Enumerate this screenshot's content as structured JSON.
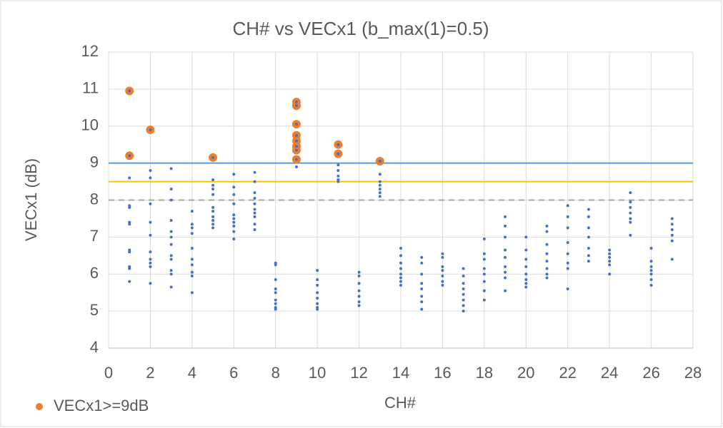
{
  "chart_data": {
    "type": "scatter",
    "title": "CH# vs VECx1 (b_max(1)=0.5)",
    "xlabel": "CH#",
    "ylabel": "VECx1 (dB)",
    "xlim": [
      0,
      28
    ],
    "xticks": [
      0,
      2,
      4,
      6,
      8,
      10,
      12,
      14,
      16,
      18,
      20,
      22,
      24,
      26,
      28
    ],
    "ylim": [
      4,
      12
    ],
    "yticks": [
      4,
      5,
      6,
      7,
      8,
      9,
      10,
      11,
      12
    ],
    "grid": true,
    "legend": "bottom-left",
    "hlines": [
      {
        "value": 9,
        "color": "#5b9bd5"
      },
      {
        "value": 8.5,
        "color": "#ffc000"
      },
      {
        "value": 8,
        "color": "#a5a5a5",
        "dashed": true
      }
    ],
    "series": [
      {
        "name": "VECx1>=9dB",
        "color": "#ed7d31",
        "size": 6,
        "x": [
          1,
          1,
          2,
          5,
          9,
          9,
          9,
          9,
          9,
          9,
          9,
          9,
          11,
          11,
          13
        ],
        "y": [
          10.95,
          9.2,
          9.9,
          9.15,
          10.65,
          10.55,
          10.05,
          9.75,
          9.6,
          9.45,
          9.35,
          9.1,
          9.5,
          9.25,
          9.05
        ]
      },
      {
        "color": "#4472c4",
        "size": 2,
        "x": [
          1,
          1,
          1,
          1,
          1,
          1,
          1,
          1,
          1,
          1,
          2,
          2,
          2,
          2,
          2,
          2,
          2,
          2,
          2,
          2,
          3,
          3,
          3,
          3,
          3,
          3,
          3,
          3,
          3,
          3,
          3,
          3,
          4,
          4,
          4,
          4,
          4,
          4,
          4,
          4,
          4,
          4,
          5,
          5,
          5,
          5,
          5,
          5,
          5,
          5,
          5,
          5,
          6,
          6,
          6,
          6,
          6,
          6,
          6,
          6,
          6,
          6,
          7,
          7,
          7,
          7,
          7,
          7,
          7,
          7,
          7,
          7,
          8,
          8,
          8,
          8,
          8,
          8,
          8,
          8,
          8,
          9,
          10,
          10,
          10,
          10,
          10,
          10,
          10,
          10,
          11,
          11,
          11,
          11,
          11,
          12,
          12,
          12,
          12,
          12,
          12,
          12,
          13,
          13,
          13,
          13,
          13,
          13,
          14,
          14,
          14,
          14,
          14,
          14,
          14,
          14,
          15,
          15,
          15,
          15,
          15,
          15,
          15,
          15,
          16,
          16,
          16,
          16,
          16,
          16,
          16,
          17,
          17,
          17,
          17,
          17,
          17,
          17,
          17,
          18,
          18,
          18,
          18,
          18,
          18,
          18,
          18,
          19,
          19,
          19,
          19,
          19,
          19,
          19,
          19,
          19,
          20,
          20,
          20,
          20,
          20,
          20,
          20,
          20,
          21,
          21,
          21,
          21,
          21,
          21,
          21,
          21,
          22,
          22,
          22,
          22,
          22,
          22,
          22,
          22,
          23,
          23,
          23,
          23,
          23,
          23,
          23,
          24,
          24,
          24,
          24,
          24,
          24,
          25,
          25,
          25,
          25,
          25,
          25,
          25,
          26,
          26,
          26,
          26,
          26,
          26,
          26,
          27,
          27,
          27,
          27,
          27,
          27,
          1,
          1,
          2,
          5,
          9,
          9,
          9,
          9,
          9,
          9,
          9,
          9,
          11,
          11,
          13
        ],
        "y": [
          8.6,
          7.85,
          7.8,
          7.4,
          7.35,
          6.65,
          6.6,
          6.2,
          6.15,
          5.8,
          8.8,
          8.6,
          7.9,
          7.4,
          7.05,
          6.6,
          6.4,
          6.3,
          6.2,
          5.75,
          8.85,
          8.3,
          8.0,
          7.45,
          7.15,
          7.0,
          6.8,
          6.5,
          6.4,
          6.1,
          6.0,
          5.65,
          7.7,
          7.35,
          7.25,
          7.1,
          6.7,
          6.4,
          6.25,
          6.05,
          5.95,
          5.5,
          8.55,
          8.4,
          8.3,
          8.15,
          7.8,
          7.7,
          7.55,
          7.45,
          7.35,
          7.25,
          8.7,
          8.35,
          8.15,
          7.9,
          7.6,
          7.5,
          7.4,
          7.3,
          7.15,
          6.95,
          8.75,
          8.5,
          8.2,
          8.05,
          7.9,
          7.75,
          7.65,
          7.55,
          7.35,
          7.2,
          6.3,
          6.25,
          5.85,
          5.6,
          5.5,
          5.3,
          5.2,
          5.1,
          5.05,
          8.9,
          6.1,
          5.85,
          5.7,
          5.5,
          5.35,
          5.2,
          5.1,
          5.05,
          8.95,
          8.8,
          8.65,
          8.55,
          8.5,
          6.05,
          5.95,
          5.75,
          5.55,
          5.4,
          5.25,
          5.15,
          8.7,
          8.5,
          8.4,
          8.3,
          8.2,
          8.1,
          6.7,
          6.5,
          6.3,
          6.15,
          6.0,
          5.9,
          5.8,
          5.7,
          6.45,
          6.3,
          6.0,
          5.75,
          5.6,
          5.4,
          5.25,
          5.05,
          6.55,
          6.45,
          6.2,
          6.1,
          5.95,
          5.8,
          5.7,
          6.15,
          5.95,
          5.75,
          5.6,
          5.45,
          5.3,
          5.15,
          5.0,
          6.95,
          6.55,
          6.4,
          6.15,
          6.0,
          5.8,
          5.55,
          5.3,
          7.55,
          7.3,
          7.0,
          6.65,
          6.45,
          6.2,
          6.05,
          5.9,
          5.55,
          7.0,
          6.65,
          6.4,
          6.2,
          6.0,
          5.85,
          5.75,
          5.65,
          7.3,
          7.15,
          6.8,
          6.55,
          6.35,
          6.15,
          6.0,
          5.9,
          7.85,
          7.55,
          7.25,
          6.85,
          6.55,
          6.3,
          6.15,
          5.6,
          7.75,
          7.55,
          7.25,
          7.0,
          6.7,
          6.5,
          6.35,
          6.65,
          6.55,
          6.45,
          6.35,
          6.25,
          6.0,
          8.2,
          7.95,
          7.8,
          7.65,
          7.5,
          7.4,
          7.05,
          6.7,
          6.35,
          6.2,
          6.1,
          6.0,
          5.85,
          5.7,
          7.5,
          7.35,
          7.2,
          7.05,
          6.9,
          6.4,
          10.95,
          9.2,
          9.9,
          9.15,
          10.65,
          10.55,
          10.05,
          9.75,
          9.6,
          9.45,
          9.35,
          9.1,
          9.5,
          9.25,
          9.05
        ]
      }
    ]
  }
}
